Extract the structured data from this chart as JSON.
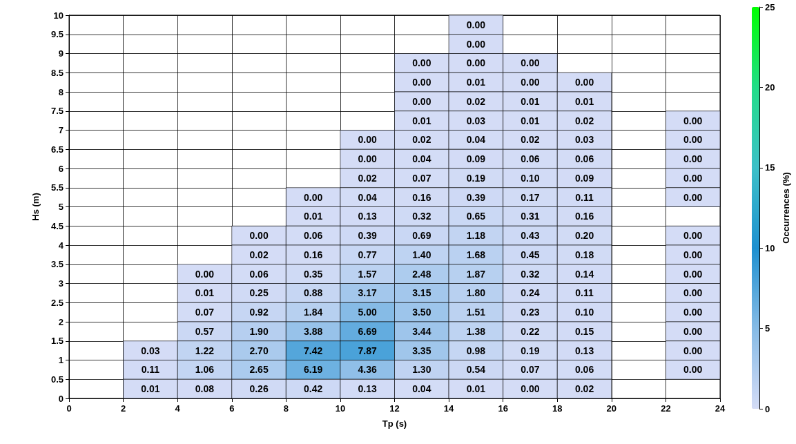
{
  "chart_data": {
    "type": "heatmap",
    "xlabel": "Tp (s)",
    "ylabel": "Hs (m)",
    "clabel": "Occurrences (%)",
    "x": [
      1,
      3,
      5,
      7,
      9,
      11,
      13,
      15,
      17,
      19,
      23
    ],
    "y": [
      9.75,
      9.25,
      8.75,
      8.25,
      7.75,
      7.25,
      6.75,
      6.25,
      5.75,
      5.25,
      4.75,
      4.25,
      3.75,
      3.25,
      2.75,
      2.25,
      1.75,
      1.25,
      0.75,
      0.25
    ],
    "xlim": [
      0,
      24
    ],
    "xticks": [
      0,
      2,
      4,
      6,
      8,
      10,
      12,
      14,
      16,
      18,
      20,
      22,
      24
    ],
    "ylim": [
      0,
      10
    ],
    "yticks": [
      0,
      0.5,
      1,
      1.5,
      2,
      2.5,
      3,
      3.5,
      4,
      4.5,
      5,
      5.5,
      6,
      6.5,
      7,
      7.5,
      8,
      8.5,
      9,
      9.5,
      10
    ],
    "clim": [
      0,
      25
    ],
    "cticks": [
      0,
      5,
      10,
      15,
      20,
      25
    ],
    "grid": true,
    "cells": [
      [
        null,
        null,
        null,
        null,
        null,
        null,
        null,
        0,
        null,
        null,
        null
      ],
      [
        null,
        null,
        null,
        null,
        null,
        null,
        null,
        0,
        null,
        null,
        null
      ],
      [
        null,
        null,
        null,
        null,
        null,
        null,
        0,
        0,
        0,
        null,
        null
      ],
      [
        null,
        null,
        null,
        null,
        null,
        null,
        0,
        0.01,
        0,
        0,
        null
      ],
      [
        null,
        null,
        null,
        null,
        null,
        null,
        0,
        0.02,
        0.01,
        0.01,
        null
      ],
      [
        null,
        null,
        null,
        null,
        null,
        null,
        0.01,
        0.03,
        0.01,
        0.02,
        0
      ],
      [
        null,
        null,
        null,
        null,
        null,
        0,
        0.02,
        0.04,
        0.02,
        0.03,
        0
      ],
      [
        null,
        null,
        null,
        null,
        null,
        0,
        0.04,
        0.09,
        0.06,
        0.06,
        0
      ],
      [
        null,
        null,
        null,
        null,
        null,
        0.02,
        0.07,
        0.19,
        0.1,
        0.09,
        0
      ],
      [
        null,
        null,
        null,
        null,
        0,
        0.04,
        0.16,
        0.39,
        0.17,
        0.11,
        0
      ],
      [
        null,
        null,
        null,
        null,
        0.01,
        0.13,
        0.32,
        0.65,
        0.31,
        0.16,
        null
      ],
      [
        null,
        null,
        null,
        0,
        0.06,
        0.39,
        0.69,
        1.18,
        0.43,
        0.2,
        0
      ],
      [
        null,
        null,
        null,
        0.02,
        0.16,
        0.77,
        1.4,
        1.68,
        0.45,
        0.18,
        0
      ],
      [
        null,
        null,
        0,
        0.06,
        0.35,
        1.57,
        2.48,
        1.87,
        0.32,
        0.14,
        0
      ],
      [
        null,
        null,
        0.01,
        0.25,
        0.88,
        3.17,
        3.15,
        1.8,
        0.24,
        0.11,
        0
      ],
      [
        null,
        null,
        0.07,
        0.92,
        1.84,
        5.0,
        3.5,
        1.51,
        0.23,
        0.1,
        0
      ],
      [
        null,
        null,
        0.57,
        1.9,
        3.88,
        6.69,
        3.44,
        1.38,
        0.22,
        0.15,
        0
      ],
      [
        null,
        0.03,
        1.22,
        2.7,
        7.42,
        7.87,
        3.35,
        0.98,
        0.19,
        0.13,
        0
      ],
      [
        null,
        0.11,
        1.06,
        2.65,
        6.19,
        4.36,
        1.3,
        0.54,
        0.07,
        0.06,
        0
      ],
      [
        null,
        0.01,
        0.08,
        0.26,
        0.42,
        0.13,
        0.04,
        0.01,
        0,
        0.02,
        null
      ]
    ],
    "cell_labels": [
      [
        null,
        null,
        null,
        null,
        null,
        null,
        null,
        "0.00",
        null,
        null,
        null
      ],
      [
        null,
        null,
        null,
        null,
        null,
        null,
        null,
        "0.00",
        null,
        null,
        null
      ],
      [
        null,
        null,
        null,
        null,
        null,
        null,
        "0.00",
        "0.00",
        "0.00",
        null,
        null
      ],
      [
        null,
        null,
        null,
        null,
        null,
        null,
        "0.00",
        "0.01",
        "0.00",
        "0.00",
        null
      ],
      [
        null,
        null,
        null,
        null,
        null,
        null,
        "0.00",
        "0.02",
        "0.01",
        "0.01",
        null
      ],
      [
        null,
        null,
        null,
        null,
        null,
        null,
        "0.01",
        "0.03",
        "0.01",
        "0.02",
        "0.00"
      ],
      [
        null,
        null,
        null,
        null,
        null,
        "0.00",
        "0.02",
        "0.04",
        "0.02",
        "0.03",
        "0.00"
      ],
      [
        null,
        null,
        null,
        null,
        null,
        "0.00",
        "0.04",
        "0.09",
        "0.06",
        "0.06",
        "0.00"
      ],
      [
        null,
        null,
        null,
        null,
        null,
        "0.02",
        "0.07",
        "0.19",
        "0.10",
        "0.09",
        "0.00"
      ],
      [
        null,
        null,
        null,
        null,
        "0.00",
        "0.04",
        "0.16",
        "0.39",
        "0.17",
        "0.11",
        "0.00"
      ],
      [
        null,
        null,
        null,
        null,
        "0.01",
        "0.13",
        "0.32",
        "0.65",
        "0.31",
        "0.16",
        null
      ],
      [
        null,
        null,
        null,
        "0.00",
        "0.06",
        "0.39",
        "0.69",
        "1.18",
        "0.43",
        "0.20",
        "0.00"
      ],
      [
        null,
        null,
        null,
        "0.02",
        "0.16",
        "0.77",
        "1.40",
        "1.68",
        "0.45",
        "0.18",
        "0.00"
      ],
      [
        null,
        null,
        "0.00",
        "0.06",
        "0.35",
        "1.57",
        "2.48",
        "1.87",
        "0.32",
        "0.14",
        "0.00"
      ],
      [
        null,
        null,
        "0.01",
        "0.25",
        "0.88",
        "3.17",
        "3.15",
        "1.80",
        "0.24",
        "0.11",
        "0.00"
      ],
      [
        null,
        null,
        "0.07",
        "0.92",
        "1.84",
        "5.00",
        "3.50",
        "1.51",
        "0.23",
        "0.10",
        "0.00"
      ],
      [
        null,
        null,
        "0.57",
        "1.90",
        "3.88",
        "6.69",
        "3.44",
        "1.38",
        "0.22",
        "0.15",
        "0.00"
      ],
      [
        null,
        "0.03",
        "1.22",
        "2.70",
        "7.42",
        "7.87",
        "3.35",
        "0.98",
        "0.19",
        "0.13",
        "0.00"
      ],
      [
        null,
        "0.11",
        "1.06",
        "2.65",
        "6.19",
        "4.36",
        "1.30",
        "0.54",
        "0.07",
        "0.06",
        "0.00"
      ],
      [
        null,
        "0.01",
        "0.08",
        "0.26",
        "0.42",
        "0.13",
        "0.04",
        "0.01",
        "0.00",
        "0.02",
        null
      ]
    ]
  }
}
